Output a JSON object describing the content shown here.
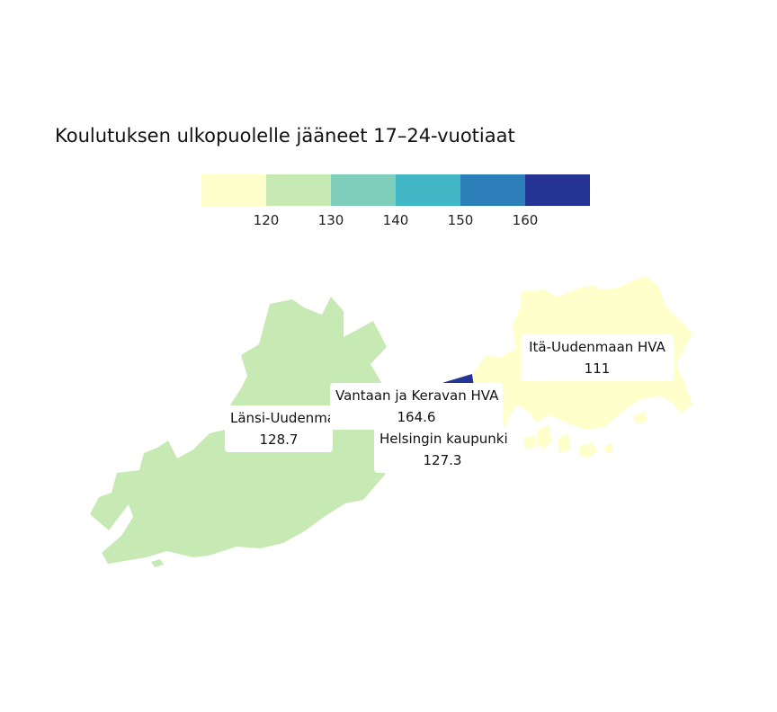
{
  "title": "Koulutuksen ulkopuolelle jääneet 17–24-vuotiaat",
  "legend": {
    "colors": [
      "#ffffcc",
      "#c7e9b4",
      "#7fcdbb",
      "#41b6c4",
      "#2c7fb8",
      "#253494"
    ],
    "ticks": [
      "120",
      "130",
      "140",
      "150",
      "160"
    ]
  },
  "regions": [
    {
      "name": "Länsi-Uudenmaan HVA",
      "name_visible": "Länsi-Uudenma",
      "value": "128.7",
      "color": "#c7e9b4"
    },
    {
      "name": "Vantaan ja Keravan HVA",
      "value": "164.6",
      "color": "#253494"
    },
    {
      "name": "Helsingin kaupunki",
      "value": "127.3",
      "color": "#c7e9b4"
    },
    {
      "name": "Itä-Uudenmaan HVA",
      "value": "111",
      "color": "#ffffcc"
    }
  ]
}
